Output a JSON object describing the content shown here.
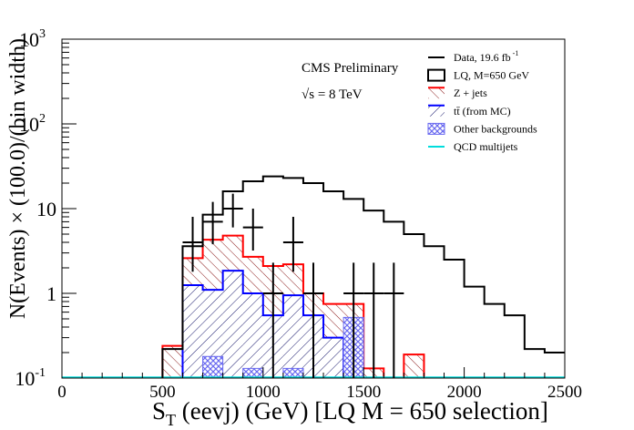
{
  "chart_data": {
    "type": "histogram",
    "title": "CMS Preliminary",
    "subtitle": "√s = 8 TeV",
    "xlabel": "S_T (eevj) (GeV) [LQ M = 650 selection]",
    "xlabel_main": "S",
    "xlabel_sub": "T",
    "xlabel_rest": " (eevj) (GeV) [LQ M = 650 selection]",
    "ylabel": "N(Events) × (100.0)/(bin width)",
    "xlim": [
      0,
      2500
    ],
    "ylim": [
      0.1,
      1000
    ],
    "yscale": "log",
    "bin_width": 100,
    "grid": false,
    "legend_position": "top-right",
    "x_ticks": [
      0,
      500,
      1000,
      1500,
      2000,
      2500
    ],
    "x_tick_labels": [
      "0",
      "500",
      "1000",
      "1500",
      "2000",
      "2500"
    ],
    "y_ticks": [
      {
        "value": 0.1,
        "base": "10",
        "exp": "-1"
      },
      {
        "value": 1,
        "base": "1",
        "exp": ""
      },
      {
        "value": 10,
        "base": "10",
        "exp": ""
      },
      {
        "value": 100,
        "base": "10",
        "exp": "2"
      },
      {
        "value": 1000,
        "base": "10",
        "exp": "3"
      }
    ],
    "legend": [
      {
        "label": "Data, 19.6 fb",
        "sup": "-1",
        "style": "data",
        "color": "#000000"
      },
      {
        "label": "LQ, M=650 GeV",
        "sup": "",
        "style": "signal",
        "color": "#000000"
      },
      {
        "label": "Z + jets",
        "sup": "",
        "style": "zjets",
        "color": "#ff0000"
      },
      {
        "label": "tt̄ (from MC)",
        "sup": "",
        "style": "ttbar",
        "color": "#0000ff"
      },
      {
        "label": "Other backgrounds",
        "sup": "",
        "style": "other",
        "color": "#6a6af0"
      },
      {
        "label": "QCD multijets",
        "sup": "",
        "style": "qcd",
        "color": "#00dddd"
      }
    ],
    "series": [
      {
        "name": "Z + jets",
        "color": "#ff0000",
        "bins": [
          {
            "x0": 500,
            "x1": 600,
            "y": 0.24
          },
          {
            "x0": 600,
            "x1": 700,
            "y": 2.6
          },
          {
            "x0": 700,
            "x1": 800,
            "y": 4.3
          },
          {
            "x0": 800,
            "x1": 900,
            "y": 4.8
          },
          {
            "x0": 900,
            "x1": 1000,
            "y": 2.7
          },
          {
            "x0": 1000,
            "x1": 1100,
            "y": 2.1
          },
          {
            "x0": 1100,
            "x1": 1200,
            "y": 2.2
          },
          {
            "x0": 1200,
            "x1": 1300,
            "y": 1.0
          },
          {
            "x0": 1300,
            "x1": 1400,
            "y": 0.75
          },
          {
            "x0": 1400,
            "x1": 1500,
            "y": 0.75
          },
          {
            "x0": 1500,
            "x1": 1600,
            "y": 0.13
          },
          {
            "x0": 1700,
            "x1": 1800,
            "y": 0.19
          }
        ]
      },
      {
        "name": "tt̄ (from MC)",
        "color": "#0000ff",
        "bins": [
          {
            "x0": 600,
            "x1": 700,
            "y": 1.25
          },
          {
            "x0": 700,
            "x1": 800,
            "y": 1.1
          },
          {
            "x0": 800,
            "x1": 900,
            "y": 1.85
          },
          {
            "x0": 900,
            "x1": 1000,
            "y": 1.0
          },
          {
            "x0": 1000,
            "x1": 1100,
            "y": 0.55
          },
          {
            "x0": 1100,
            "x1": 1200,
            "y": 0.95
          },
          {
            "x0": 1200,
            "x1": 1300,
            "y": 0.55
          },
          {
            "x0": 1300,
            "x1": 1400,
            "y": 0.3
          }
        ]
      },
      {
        "name": "Other backgrounds",
        "color": "#6a6af0",
        "bins": [
          {
            "x0": 700,
            "x1": 800,
            "y": 0.18
          },
          {
            "x0": 900,
            "x1": 1000,
            "y": 0.13
          },
          {
            "x0": 1100,
            "x1": 1200,
            "y": 0.13
          },
          {
            "x0": 1400,
            "x1": 1500,
            "y": 0.52
          }
        ]
      },
      {
        "name": "LQ, M=650 GeV",
        "color": "#000000",
        "bins": [
          {
            "x0": 500,
            "x1": 600,
            "y": 0.22
          },
          {
            "x0": 600,
            "x1": 700,
            "y": 3.6
          },
          {
            "x0": 700,
            "x1": 800,
            "y": 8.5
          },
          {
            "x0": 800,
            "x1": 900,
            "y": 16
          },
          {
            "x0": 900,
            "x1": 1000,
            "y": 21
          },
          {
            "x0": 1000,
            "x1": 1100,
            "y": 24
          },
          {
            "x0": 1100,
            "x1": 1200,
            "y": 23
          },
          {
            "x0": 1200,
            "x1": 1300,
            "y": 20
          },
          {
            "x0": 1300,
            "x1": 1400,
            "y": 16
          },
          {
            "x0": 1400,
            "x1": 1500,
            "y": 13
          },
          {
            "x0": 1500,
            "x1": 1600,
            "y": 9.5
          },
          {
            "x0": 1600,
            "x1": 1700,
            "y": 7
          },
          {
            "x0": 1700,
            "x1": 1800,
            "y": 5
          },
          {
            "x0": 1800,
            "x1": 1900,
            "y": 3.6
          },
          {
            "x0": 1900,
            "x1": 2000,
            "y": 2.5
          },
          {
            "x0": 2000,
            "x1": 2100,
            "y": 1.2
          },
          {
            "x0": 2100,
            "x1": 2200,
            "y": 0.75
          },
          {
            "x0": 2200,
            "x1": 2300,
            "y": 0.55
          },
          {
            "x0": 2300,
            "x1": 2400,
            "y": 0.22
          },
          {
            "x0": 2400,
            "x1": 2500,
            "y": 0.2
          }
        ]
      }
    ],
    "data_points": [
      {
        "x": 650,
        "y": 4,
        "ylo": 1.8,
        "yhi": 8
      },
      {
        "x": 750,
        "y": 7,
        "ylo": 3.8,
        "yhi": 12
      },
      {
        "x": 850,
        "y": 10,
        "ylo": 6,
        "yhi": 15
      },
      {
        "x": 950,
        "y": 6,
        "ylo": 3.2,
        "yhi": 10
      },
      {
        "x": 1050,
        "y": 1,
        "ylo": 0.1,
        "yhi": 2.3
      },
      {
        "x": 1150,
        "y": 4,
        "ylo": 1.8,
        "yhi": 8
      },
      {
        "x": 1250,
        "y": 1,
        "ylo": 0.1,
        "yhi": 2.3
      },
      {
        "x": 1450,
        "y": 1,
        "ylo": 0.1,
        "yhi": 2.3
      },
      {
        "x": 1550,
        "y": 1,
        "ylo": 0.1,
        "yhi": 2.3
      },
      {
        "x": 1650,
        "y": 1,
        "ylo": 0.1,
        "yhi": 2.3
      }
    ]
  }
}
